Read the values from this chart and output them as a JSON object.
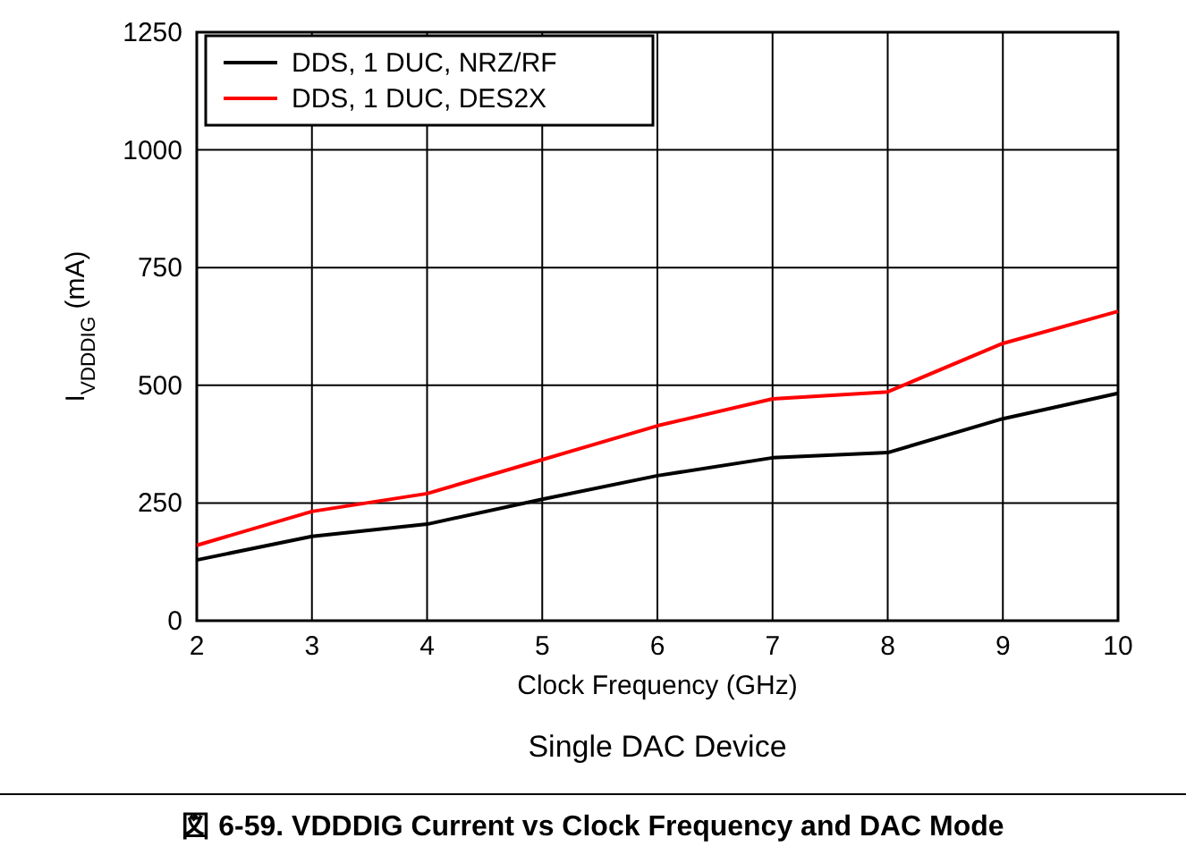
{
  "chart_data": {
    "type": "line",
    "title": "図 6-59. VDDDIG Current vs Clock Frequency and DAC Mode",
    "xlabel": "Clock Frequency (GHz)",
    "ylabel": "I$_{VDDDIG}$ (mA)",
    "annotations": [
      "Single DAC Device"
    ],
    "x": [
      2,
      3,
      4,
      5,
      6,
      7,
      8,
      9,
      10
    ],
    "series": [
      {
        "name": "DDS, 1 DUC, NRZ/RF",
        "color": "#000000",
        "values": [
          129,
          179,
          205,
          258,
          308,
          346,
          357,
          429,
          483
        ]
      },
      {
        "name": "DDS, 1 DUC, DES2X",
        "color": "#ff0000",
        "values": [
          160,
          232,
          270,
          342,
          414,
          471,
          486,
          589,
          657
        ]
      }
    ],
    "xlim": [
      2,
      10
    ],
    "xticks": [
      2,
      3,
      4,
      5,
      6,
      7,
      8,
      9,
      10
    ],
    "ylim": [
      0,
      1250
    ],
    "yticks": [
      0,
      250,
      500,
      750,
      1000,
      1250
    ],
    "grid": true,
    "legend": "top left",
    "line_style": "solid",
    "marker": "none"
  }
}
